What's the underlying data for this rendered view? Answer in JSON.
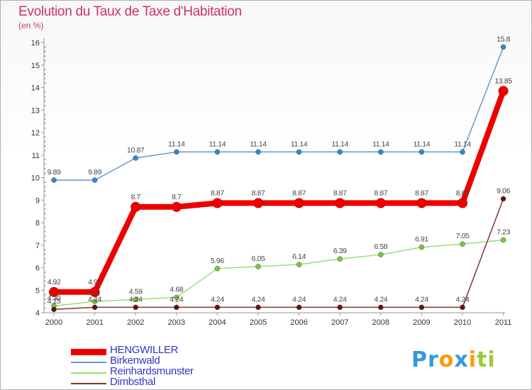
{
  "title": "Evolution du Taux de Taxe d'Habitation",
  "subtitle": "(en %)",
  "logo": {
    "text": "Proxiti",
    "letters": [
      "P",
      "r",
      "o",
      "x",
      "i",
      "t",
      "i"
    ],
    "colors": [
      "#3399dd",
      "#3399dd",
      "#ff9900",
      "#3399dd",
      "#ff9900",
      "#99cc33",
      "#99cc33"
    ]
  },
  "chart_data": {
    "type": "line",
    "title": "Evolution du Taux de Taxe d'Habitation",
    "ylabel": "(en %)",
    "xlabel": "",
    "categories": [
      "2000",
      "2001",
      "2002",
      "2003",
      "2004",
      "2005",
      "2006",
      "2007",
      "2008",
      "2009",
      "2010",
      "2011"
    ],
    "ylim": [
      4,
      16
    ],
    "yticks": [
      4,
      5,
      6,
      7,
      8,
      9,
      10,
      11,
      12,
      13,
      14,
      15,
      16
    ],
    "grid": false,
    "legend_position": "bottom-left",
    "series": [
      {
        "name": "Birkenwald",
        "color": "#6699cc",
        "marker": "#3388cc",
        "width": 1.5,
        "radius": 3.5,
        "values": [
          9.89,
          9.89,
          10.87,
          11.14,
          11.14,
          11.14,
          11.14,
          11.14,
          11.14,
          11.14,
          11.14,
          15.8
        ],
        "labels": [
          "9.89",
          "9.89",
          "10.87",
          "11.14",
          "11.14",
          "11.14",
          "11.14",
          "11.14",
          "11.14",
          "11.14",
          "11.14",
          "15.8"
        ]
      },
      {
        "name": "Reinhardsmunster",
        "color": "#99dd77",
        "marker": "#77cc33",
        "width": 1.5,
        "radius": 3.5,
        "values": [
          4.3,
          4.5,
          4.59,
          4.68,
          5.96,
          6.05,
          6.14,
          6.39,
          6.58,
          6.91,
          7.05,
          7.23
        ],
        "labels": [
          "4.30",
          "4.5",
          "4.59",
          "4.68",
          "5.96",
          "6.05",
          "6.14",
          "6.39",
          "6.58",
          "6.91",
          "7.05",
          "7.23"
        ]
      },
      {
        "name": "Dimbsthal",
        "color": "#883333",
        "marker": "#661111",
        "width": 1.5,
        "radius": 3.5,
        "values": [
          4.15,
          4.24,
          4.24,
          4.24,
          4.24,
          4.24,
          4.24,
          4.24,
          4.24,
          4.24,
          4.24,
          9.06
        ],
        "labels": [
          "4.15",
          "4.24",
          "4.24",
          "4.24",
          "4.24",
          "4.24",
          "4.24",
          "4.24",
          "4.24",
          "4.24",
          "4.24",
          "9.06"
        ]
      },
      {
        "name": "HENGWILLER",
        "color": "#ee0000",
        "marker": "#ee0000",
        "width": 8,
        "radius": 6.5,
        "values": [
          4.92,
          4.92,
          8.7,
          8.7,
          8.87,
          8.87,
          8.87,
          8.87,
          8.87,
          8.87,
          8.87,
          13.85
        ],
        "labels": [
          "4.92",
          "4.92",
          "8.7",
          "8.7",
          "8.87",
          "8.87",
          "8.87",
          "8.87",
          "8.87",
          "8.87",
          "8.87",
          "13.85"
        ]
      }
    ],
    "legend": [
      "HENGWILLER",
      "Birkenwald",
      "Reinhardsmunster",
      "Dimbsthal"
    ]
  }
}
